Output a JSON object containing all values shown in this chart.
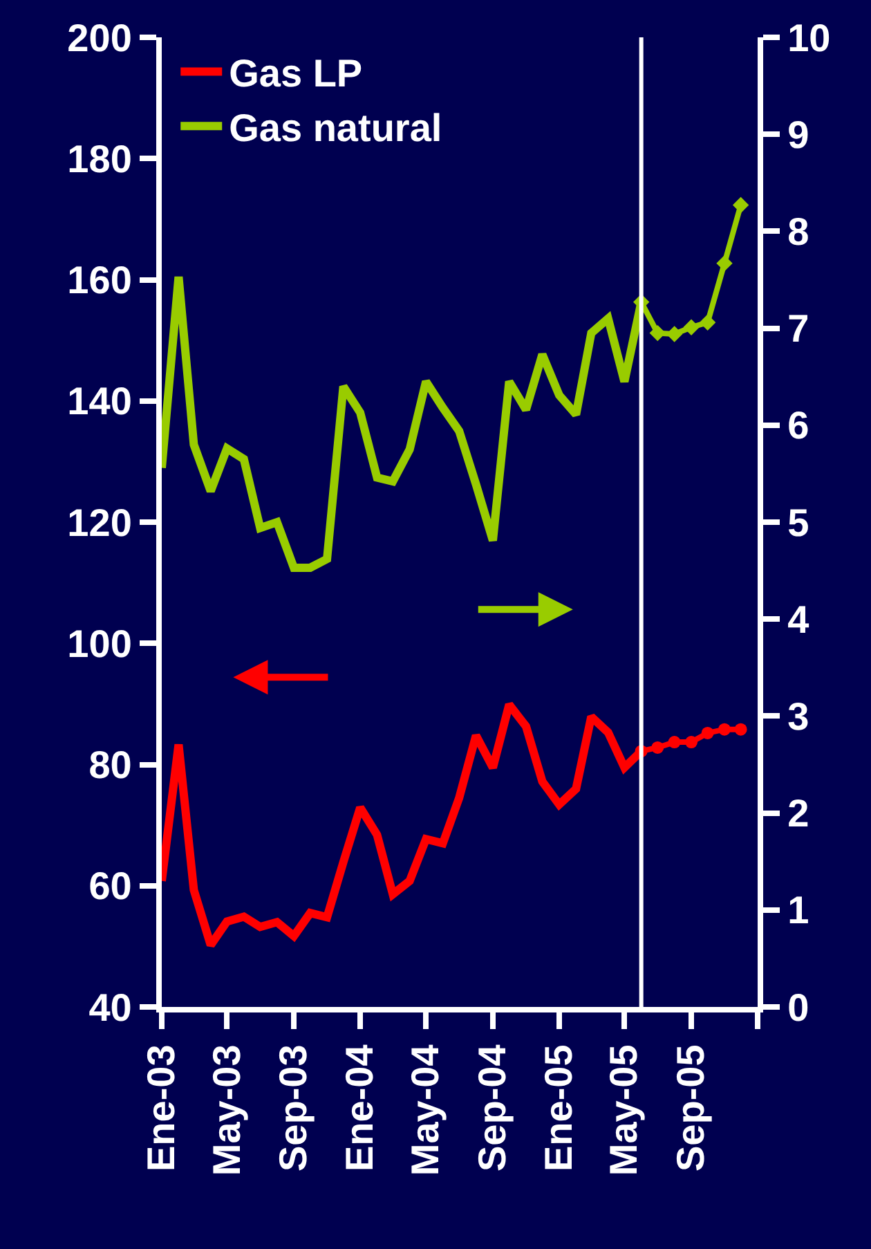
{
  "chart_data": {
    "type": "line",
    "x": [
      "2003-01",
      "2003-02",
      "2003-03",
      "2003-04",
      "2003-05",
      "2003-06",
      "2003-07",
      "2003-08",
      "2003-09",
      "2003-10",
      "2003-11",
      "2003-12",
      "2004-01",
      "2004-02",
      "2004-03",
      "2004-04",
      "2004-05",
      "2004-06",
      "2004-07",
      "2004-08",
      "2004-09",
      "2004-10",
      "2004-11",
      "2004-12",
      "2005-01",
      "2005-02",
      "2005-03",
      "2005-04",
      "2005-05",
      "2005-06"
    ],
    "series": [
      {
        "name": "Gas LP",
        "color": "#ff0000",
        "marker": "none",
        "values": [
          60.8,
          83.3,
          59.3,
          50.2,
          54.1,
          54.9,
          53.2,
          54.0,
          51.7,
          55.5,
          54.8,
          63.9,
          72.9,
          68.4,
          58.6,
          60.8,
          67.7,
          67.0,
          74.5,
          84.8,
          79.5,
          89.9,
          86.3,
          77.2,
          73.4,
          76.0,
          87.9,
          85.3,
          79.5,
          82.2
        ]
      },
      {
        "name": "Gas natural",
        "color": "#99cc00",
        "marker": "none",
        "axis": "y2",
        "values": [
          5.56,
          7.53,
          5.8,
          5.32,
          5.76,
          5.65,
          4.94,
          5.0,
          4.53,
          4.53,
          4.62,
          6.4,
          6.13,
          5.46,
          5.42,
          5.75,
          6.45,
          6.18,
          5.94,
          5.39,
          4.81,
          6.45,
          6.16,
          6.73,
          6.31,
          6.11,
          6.95,
          7.1,
          6.45,
          7.27
        ]
      },
      {
        "color": "#ff0000",
        "marker": "circle",
        "x": [
          "2005-06",
          "2005-07",
          "2005-08",
          "2005-09",
          "2005-10",
          "2005-11",
          "2005-12"
        ],
        "values": [
          82.2,
          82.8,
          83.7,
          83.7,
          85.2,
          85.8,
          85.8
        ]
      },
      {
        "color": "#99cc00",
        "marker": "diamond",
        "axis": "y2",
        "x": [
          "2005-06",
          "2005-07",
          "2005-08",
          "2005-09",
          "2005-10",
          "2005-11",
          "2005-12"
        ],
        "values": [
          7.27,
          6.95,
          6.94,
          7.01,
          7.06,
          7.67,
          8.27
        ]
      }
    ],
    "xlim": [
      "2003-01",
      "2006-01"
    ],
    "xticks": [
      {
        "value": "2003-01",
        "label": "Ene-03"
      },
      {
        "value": "2003-05",
        "label": "May-03"
      },
      {
        "value": "2003-09",
        "label": "Sep-03"
      },
      {
        "value": "2004-01",
        "label": "Ene-04"
      },
      {
        "value": "2004-05",
        "label": "May-04"
      },
      {
        "value": "2004-09",
        "label": "Sep-04"
      },
      {
        "value": "2005-01",
        "label": "Ene-05"
      },
      {
        "value": "2005-05",
        "label": "May-05"
      },
      {
        "value": "2005-09",
        "label": "Sep-05"
      },
      {
        "value": "2006-01",
        "label": null
      }
    ],
    "ylim": [
      40,
      200
    ],
    "yticks": [
      40,
      60,
      80,
      100,
      120,
      140,
      160,
      180,
      200
    ],
    "y2lim": [
      0,
      10
    ],
    "y2ticks": [
      0,
      1,
      2,
      3,
      4,
      5,
      6,
      7,
      8,
      9,
      10
    ],
    "ref_lines": [
      {
        "axis": "x",
        "value": "2005-06",
        "color": "#ffffff"
      }
    ],
    "grid": false,
    "legend": "top left"
  }
}
